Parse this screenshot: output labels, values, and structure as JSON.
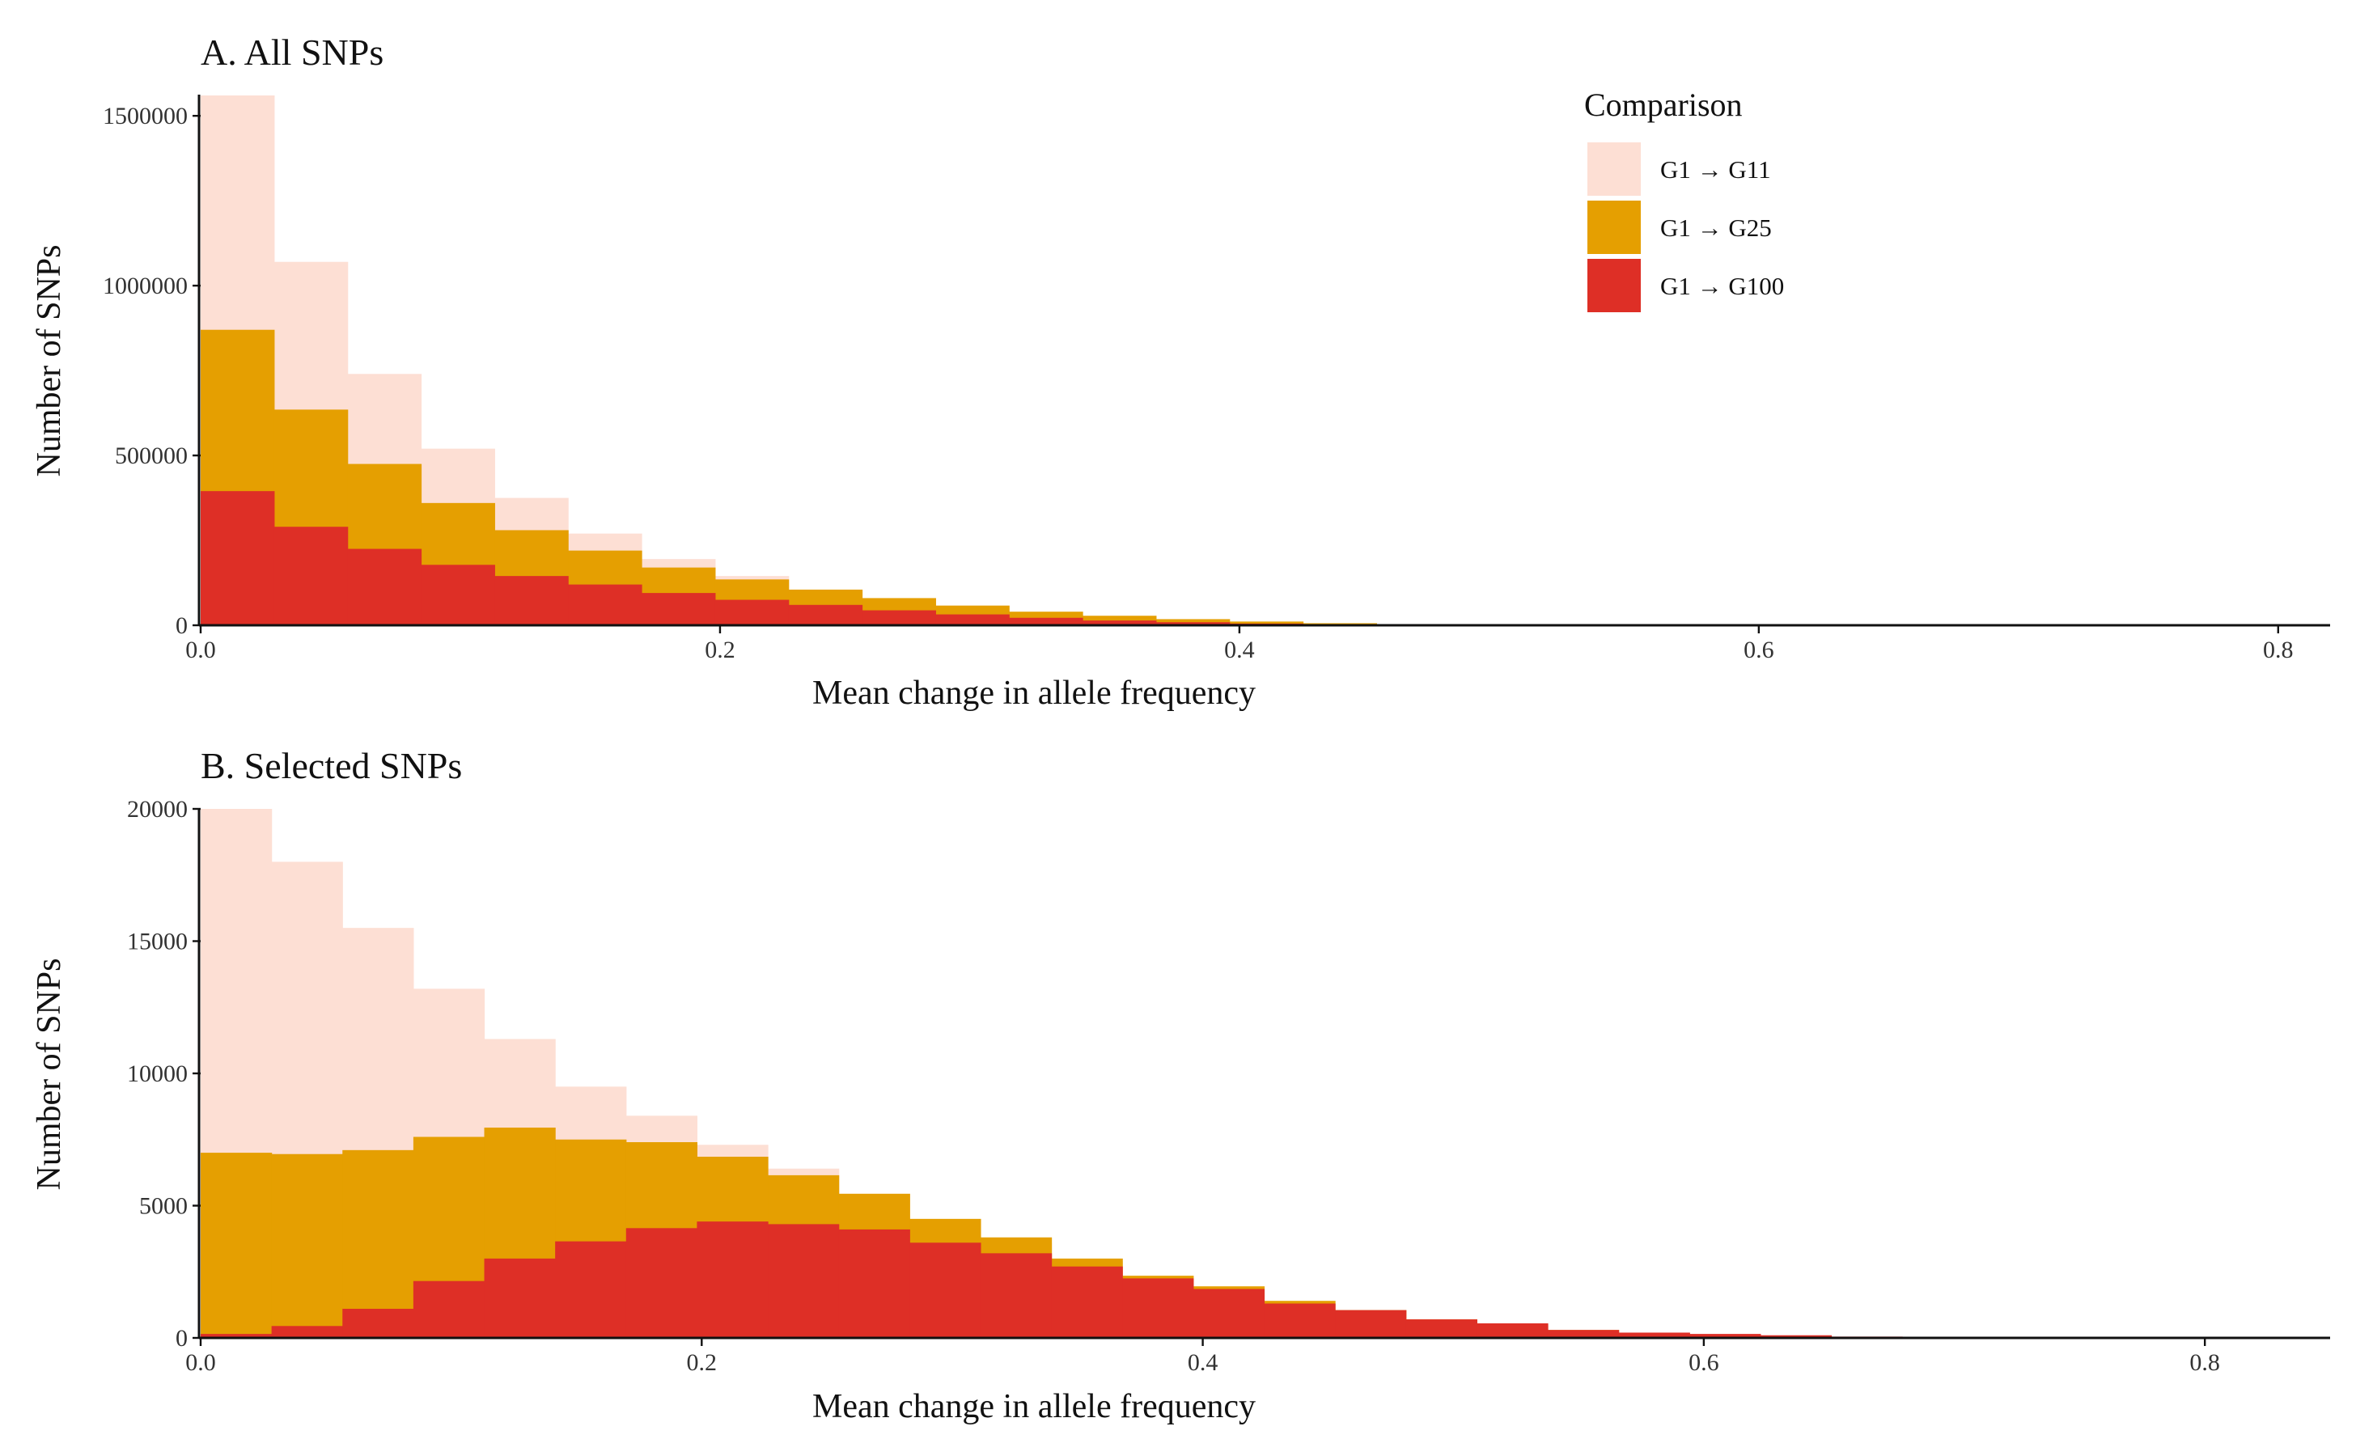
{
  "colors": {
    "G1_G11": "#FDDFD4",
    "G1_G25": "#E59F01",
    "G1_G100": "#DE2F26"
  },
  "legend": {
    "title": "Comparison",
    "placement": "top-right",
    "items": [
      {
        "label": "G1 → G11",
        "color_key": "G1_G11"
      },
      {
        "label": "G1 → G25",
        "color_key": "G1_G25"
      },
      {
        "label": "G1 → G100",
        "color_key": "G1_G100"
      }
    ]
  },
  "chart_data": [
    {
      "type": "histogram",
      "title": "A. All SNPs",
      "xlabel": "Mean change in allele frequency",
      "ylabel": "Number of SNPs",
      "xlim": [
        0,
        0.82
      ],
      "ylim": [
        0,
        1560000
      ],
      "xticks": [
        0.0,
        0.2,
        0.4,
        0.6,
        0.8
      ],
      "xtick_labels": [
        "0.0",
        "0.2",
        "0.4",
        "0.6",
        "0.8"
      ],
      "yticks": [
        0,
        500000,
        1000000,
        1500000
      ],
      "ytick_labels": [
        "0",
        "500000",
        "1000000",
        "1500000"
      ],
      "grid": false,
      "bin_width": 0.0283,
      "bin_start": 0.0,
      "series": [
        {
          "name": "G1 → G11",
          "color_key": "G1_G11",
          "values": [
            1560000,
            1070000,
            740000,
            520000,
            375000,
            270000,
            195000,
            145000,
            100000,
            65000,
            40000,
            25000,
            15000,
            8000,
            4000,
            2000,
            1000,
            0,
            0,
            0,
            0,
            0,
            0,
            0,
            0,
            0,
            0,
            0,
            0
          ]
        },
        {
          "name": "G1 → G25",
          "color_key": "G1_G25",
          "values": [
            870000,
            635000,
            475000,
            360000,
            280000,
            220000,
            170000,
            135000,
            105000,
            80000,
            58000,
            40000,
            28000,
            18000,
            11000,
            6000,
            3000,
            1000,
            0,
            0,
            0,
            0,
            0,
            0,
            0,
            0,
            0,
            0,
            0
          ]
        },
        {
          "name": "G1 → G100",
          "color_key": "G1_G100",
          "values": [
            395000,
            290000,
            225000,
            178000,
            145000,
            120000,
            95000,
            75000,
            60000,
            44000,
            32000,
            22000,
            14000,
            9000,
            5000,
            2500,
            1000,
            0,
            0,
            0,
            0,
            0,
            0,
            0,
            0,
            0,
            0,
            0,
            0
          ]
        }
      ]
    },
    {
      "type": "histogram",
      "title": "B. Selected SNPs",
      "xlabel": "Mean change in allele frequency",
      "ylabel": "Number of SNPs",
      "xlim": [
        0,
        0.85
      ],
      "ylim": [
        0,
        20000
      ],
      "xticks": [
        0.0,
        0.2,
        0.4,
        0.6,
        0.8
      ],
      "xtick_labels": [
        "0.0",
        "0.2",
        "0.4",
        "0.6",
        "0.8"
      ],
      "yticks": [
        0,
        5000,
        10000,
        15000,
        20000
      ],
      "ytick_labels": [
        "0",
        "5000",
        "10000",
        "15000",
        "20000"
      ],
      "grid": false,
      "bin_width": 0.0283,
      "bin_start": 0.0,
      "series": [
        {
          "name": "G1 → G11",
          "color_key": "G1_G11",
          "values": [
            20000,
            18000,
            15500,
            13200,
            11300,
            9500,
            8400,
            7300,
            6400,
            5400,
            4400,
            3600,
            2900,
            2200,
            1700,
            1300,
            1000,
            700,
            450,
            300,
            180,
            100,
            50,
            20,
            0,
            0,
            0,
            0,
            0,
            0
          ]
        },
        {
          "name": "G1 → G25",
          "color_key": "G1_G25",
          "values": [
            7000,
            6950,
            7100,
            7600,
            7950,
            7500,
            7400,
            6850,
            6150,
            5450,
            4500,
            3800,
            3000,
            2350,
            1950,
            1400,
            1050,
            700,
            500,
            300,
            180,
            100,
            50,
            20,
            0,
            0,
            0,
            0,
            0,
            0
          ]
        },
        {
          "name": "G1 → G100",
          "color_key": "G1_G100",
          "values": [
            150,
            450,
            1100,
            2150,
            3000,
            3650,
            4150,
            4400,
            4300,
            4100,
            3600,
            3200,
            2700,
            2250,
            1850,
            1300,
            1050,
            700,
            550,
            300,
            200,
            150,
            100,
            50,
            20,
            0,
            0,
            0,
            0,
            0
          ]
        }
      ]
    }
  ]
}
